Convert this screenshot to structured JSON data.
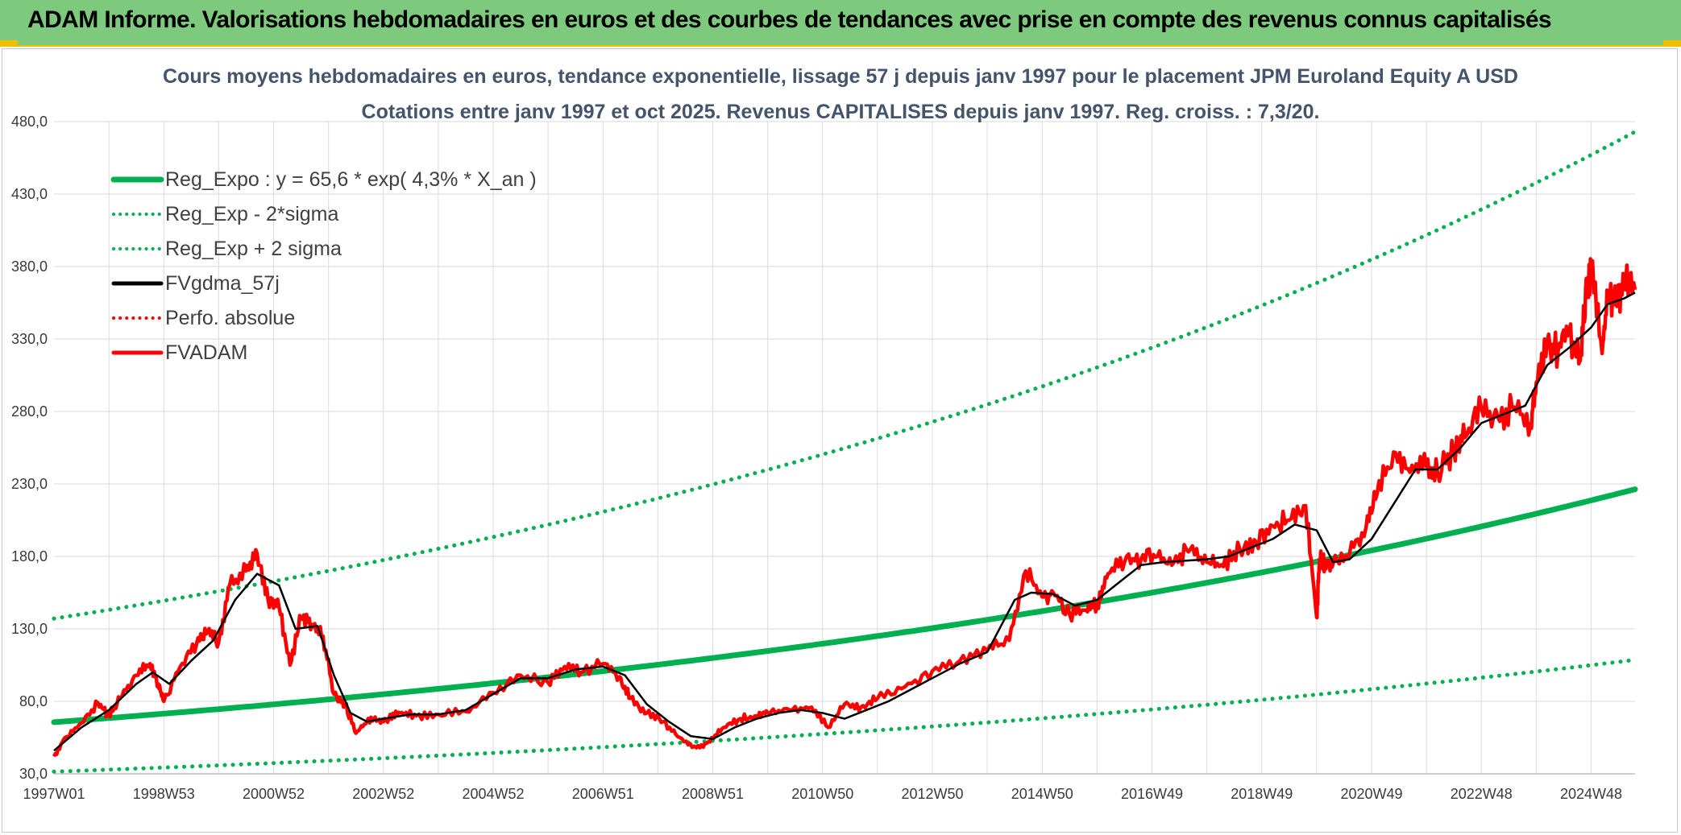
{
  "header": {
    "title": "ADAM Informe. Valorisations hebdomadaires en euros et des courbes de tendances avec prise en compte des revenus connus capitalisés"
  },
  "chart_data": {
    "type": "line",
    "title_line1": "Cours moyens hebdomadaires en euros, tendance exponentielle, lissage 57 j depuis janv 1997 pour le placement JPM Euroland Equity A USD",
    "title_line2": "Cotations entre janv 1997 et oct 2025. Revenus CAPITALISES depuis janv 1997. Reg. croiss. : 7,3/20.",
    "xlabel": "",
    "ylabel": "",
    "xlim": [
      1997.0,
      2025.8
    ],
    "ylim": [
      30,
      480
    ],
    "y_ticks": [
      "30,0",
      "80,0",
      "130,0",
      "180,0",
      "230,0",
      "280,0",
      "330,0",
      "380,0",
      "430,0",
      "480,0"
    ],
    "x_tick_labels": [
      "1997W01",
      "1998W53",
      "2000W52",
      "2002W52",
      "2004W52",
      "2006W51",
      "2008W51",
      "2010W50",
      "2012W50",
      "2014W50",
      "2016W49",
      "2018W49",
      "2020W49",
      "2022W48",
      "2024W48"
    ],
    "x_tick_years": [
      1997.0,
      1999.0,
      2001.0,
      2003.0,
      2005.0,
      2007.0,
      2009.0,
      2011.0,
      2013.0,
      2015.0,
      2017.0,
      2019.0,
      2021.0,
      2023.0,
      2025.0
    ],
    "legend_position": "top-left",
    "legend": [
      {
        "name": "Reg_Expo : y = 65,6 * exp( 4,3% *  X_an )",
        "color": "#00b050",
        "style": "solid-thick"
      },
      {
        "name": "Reg_Exp - 2*sigma",
        "color": "#00b050",
        "style": "dotted"
      },
      {
        "name": "Reg_Exp + 2 sigma",
        "color": "#00b050",
        "style": "dotted"
      },
      {
        "name": "FVgdma_57j",
        "color": "#000000",
        "style": "solid"
      },
      {
        "name": "Perfo. absolue",
        "color": "#ff0000",
        "style": "dotted"
      },
      {
        "name": "FVADAM",
        "color": "#ff0000",
        "style": "solid"
      }
    ],
    "regression": {
      "a": 65.6,
      "rate": 0.043,
      "lower_factor": 0.48,
      "upper_factor": 2.09
    },
    "series_fvadam": {
      "x": [
        1997.0,
        1997.2,
        1997.5,
        1997.8,
        1998.0,
        1998.2,
        1998.5,
        1998.75,
        1998.9,
        1999.0,
        1999.3,
        1999.6,
        1999.8,
        2000.0,
        2000.2,
        2000.5,
        2000.7,
        2000.9,
        2001.1,
        2001.3,
        2001.5,
        2001.7,
        2001.9,
        2002.1,
        2002.3,
        2002.5,
        2002.7,
        2002.9,
        2003.1,
        2003.3,
        2003.6,
        2004.0,
        2004.5,
        2005.0,
        2005.5,
        2006.0,
        2006.3,
        2006.6,
        2007.0,
        2007.3,
        2007.5,
        2007.8,
        2008.1,
        2008.4,
        2008.7,
        2008.95,
        2009.2,
        2009.5,
        2009.8,
        2010.0,
        2010.4,
        2010.8,
        2011.1,
        2011.4,
        2011.7,
        2012.0,
        2012.5,
        2013.0,
        2013.5,
        2014.0,
        2014.4,
        2014.7,
        2015.0,
        2015.2,
        2015.5,
        2015.8,
        2016.0,
        2016.2,
        2016.5,
        2016.8,
        2017.1,
        2017.4,
        2017.7,
        2018.0,
        2018.3,
        2018.6,
        2018.9,
        2019.2,
        2019.5,
        2019.8,
        2020.0,
        2020.05,
        2020.15,
        2020.3,
        2020.6,
        2020.9,
        2021.1,
        2021.4,
        2021.7,
        2022.0,
        2022.2,
        2022.5,
        2022.7,
        2023.0,
        2023.3,
        2023.6,
        2023.9,
        2024.0,
        2024.2,
        2024.4,
        2024.6,
        2024.8,
        2024.9,
        2025.0,
        2025.2,
        2025.3,
        2025.45,
        2025.6,
        2025.8
      ],
      "values": [
        42,
        55,
        65,
        79,
        70,
        82,
        98,
        106,
        92,
        80,
        104,
        120,
        128,
        121,
        160,
        170,
        182,
        150,
        145,
        105,
        138,
        133,
        125,
        85,
        78,
        58,
        66,
        67,
        68,
        72,
        70,
        71,
        73,
        86,
        98,
        93,
        104,
        100,
        106,
        97,
        82,
        72,
        66,
        55,
        48,
        52,
        62,
        68,
        70,
        72,
        74,
        76,
        62,
        78,
        76,
        82,
        90,
        101,
        108,
        115,
        122,
        170,
        152,
        155,
        140,
        143,
        147,
        168,
        176,
        178,
        180,
        176,
        185,
        176,
        173,
        185,
        190,
        201,
        205,
        215,
        138,
        178,
        176,
        175,
        182,
        200,
        223,
        252,
        238,
        242,
        238,
        252,
        262,
        282,
        276,
        283,
        272,
        300,
        328,
        322,
        335,
        315,
        365,
        378,
        320,
        358,
        356,
        368,
        364
      ]
    },
    "series_fvgdma_57j": {
      "x": [
        1997.0,
        1997.5,
        1998.0,
        1998.5,
        1998.8,
        1999.1,
        1999.5,
        1999.9,
        2000.3,
        2000.7,
        2001.1,
        2001.4,
        2001.8,
        2002.1,
        2002.4,
        2002.7,
        2003.0,
        2003.5,
        2004.0,
        2004.5,
        2005.0,
        2005.5,
        2006.0,
        2006.5,
        2007.0,
        2007.4,
        2007.8,
        2008.2,
        2008.6,
        2009.0,
        2009.4,
        2009.8,
        2010.2,
        2010.6,
        2011.0,
        2011.4,
        2011.8,
        2012.2,
        2012.6,
        2013.0,
        2013.5,
        2014.0,
        2014.5,
        2014.8,
        2015.2,
        2015.6,
        2016.0,
        2016.4,
        2016.8,
        2017.2,
        2017.6,
        2018.0,
        2018.4,
        2018.8,
        2019.2,
        2019.6,
        2020.0,
        2020.3,
        2020.6,
        2021.0,
        2021.4,
        2021.8,
        2022.2,
        2022.6,
        2023.0,
        2023.4,
        2023.8,
        2024.2,
        2024.6,
        2025.0,
        2025.3,
        2025.6,
        2025.8
      ],
      "values": [
        46,
        62,
        74,
        92,
        100,
        92,
        108,
        122,
        150,
        168,
        160,
        130,
        132,
        98,
        72,
        66,
        68,
        71,
        71,
        74,
        85,
        96,
        96,
        102,
        104,
        98,
        78,
        66,
        56,
        54,
        62,
        68,
        72,
        74,
        72,
        68,
        74,
        80,
        88,
        96,
        106,
        114,
        150,
        155,
        154,
        146,
        150,
        162,
        174,
        176,
        177,
        178,
        180,
        186,
        192,
        202,
        198,
        176,
        178,
        192,
        216,
        240,
        240,
        254,
        272,
        278,
        284,
        312,
        324,
        338,
        354,
        358,
        362
      ]
    }
  }
}
